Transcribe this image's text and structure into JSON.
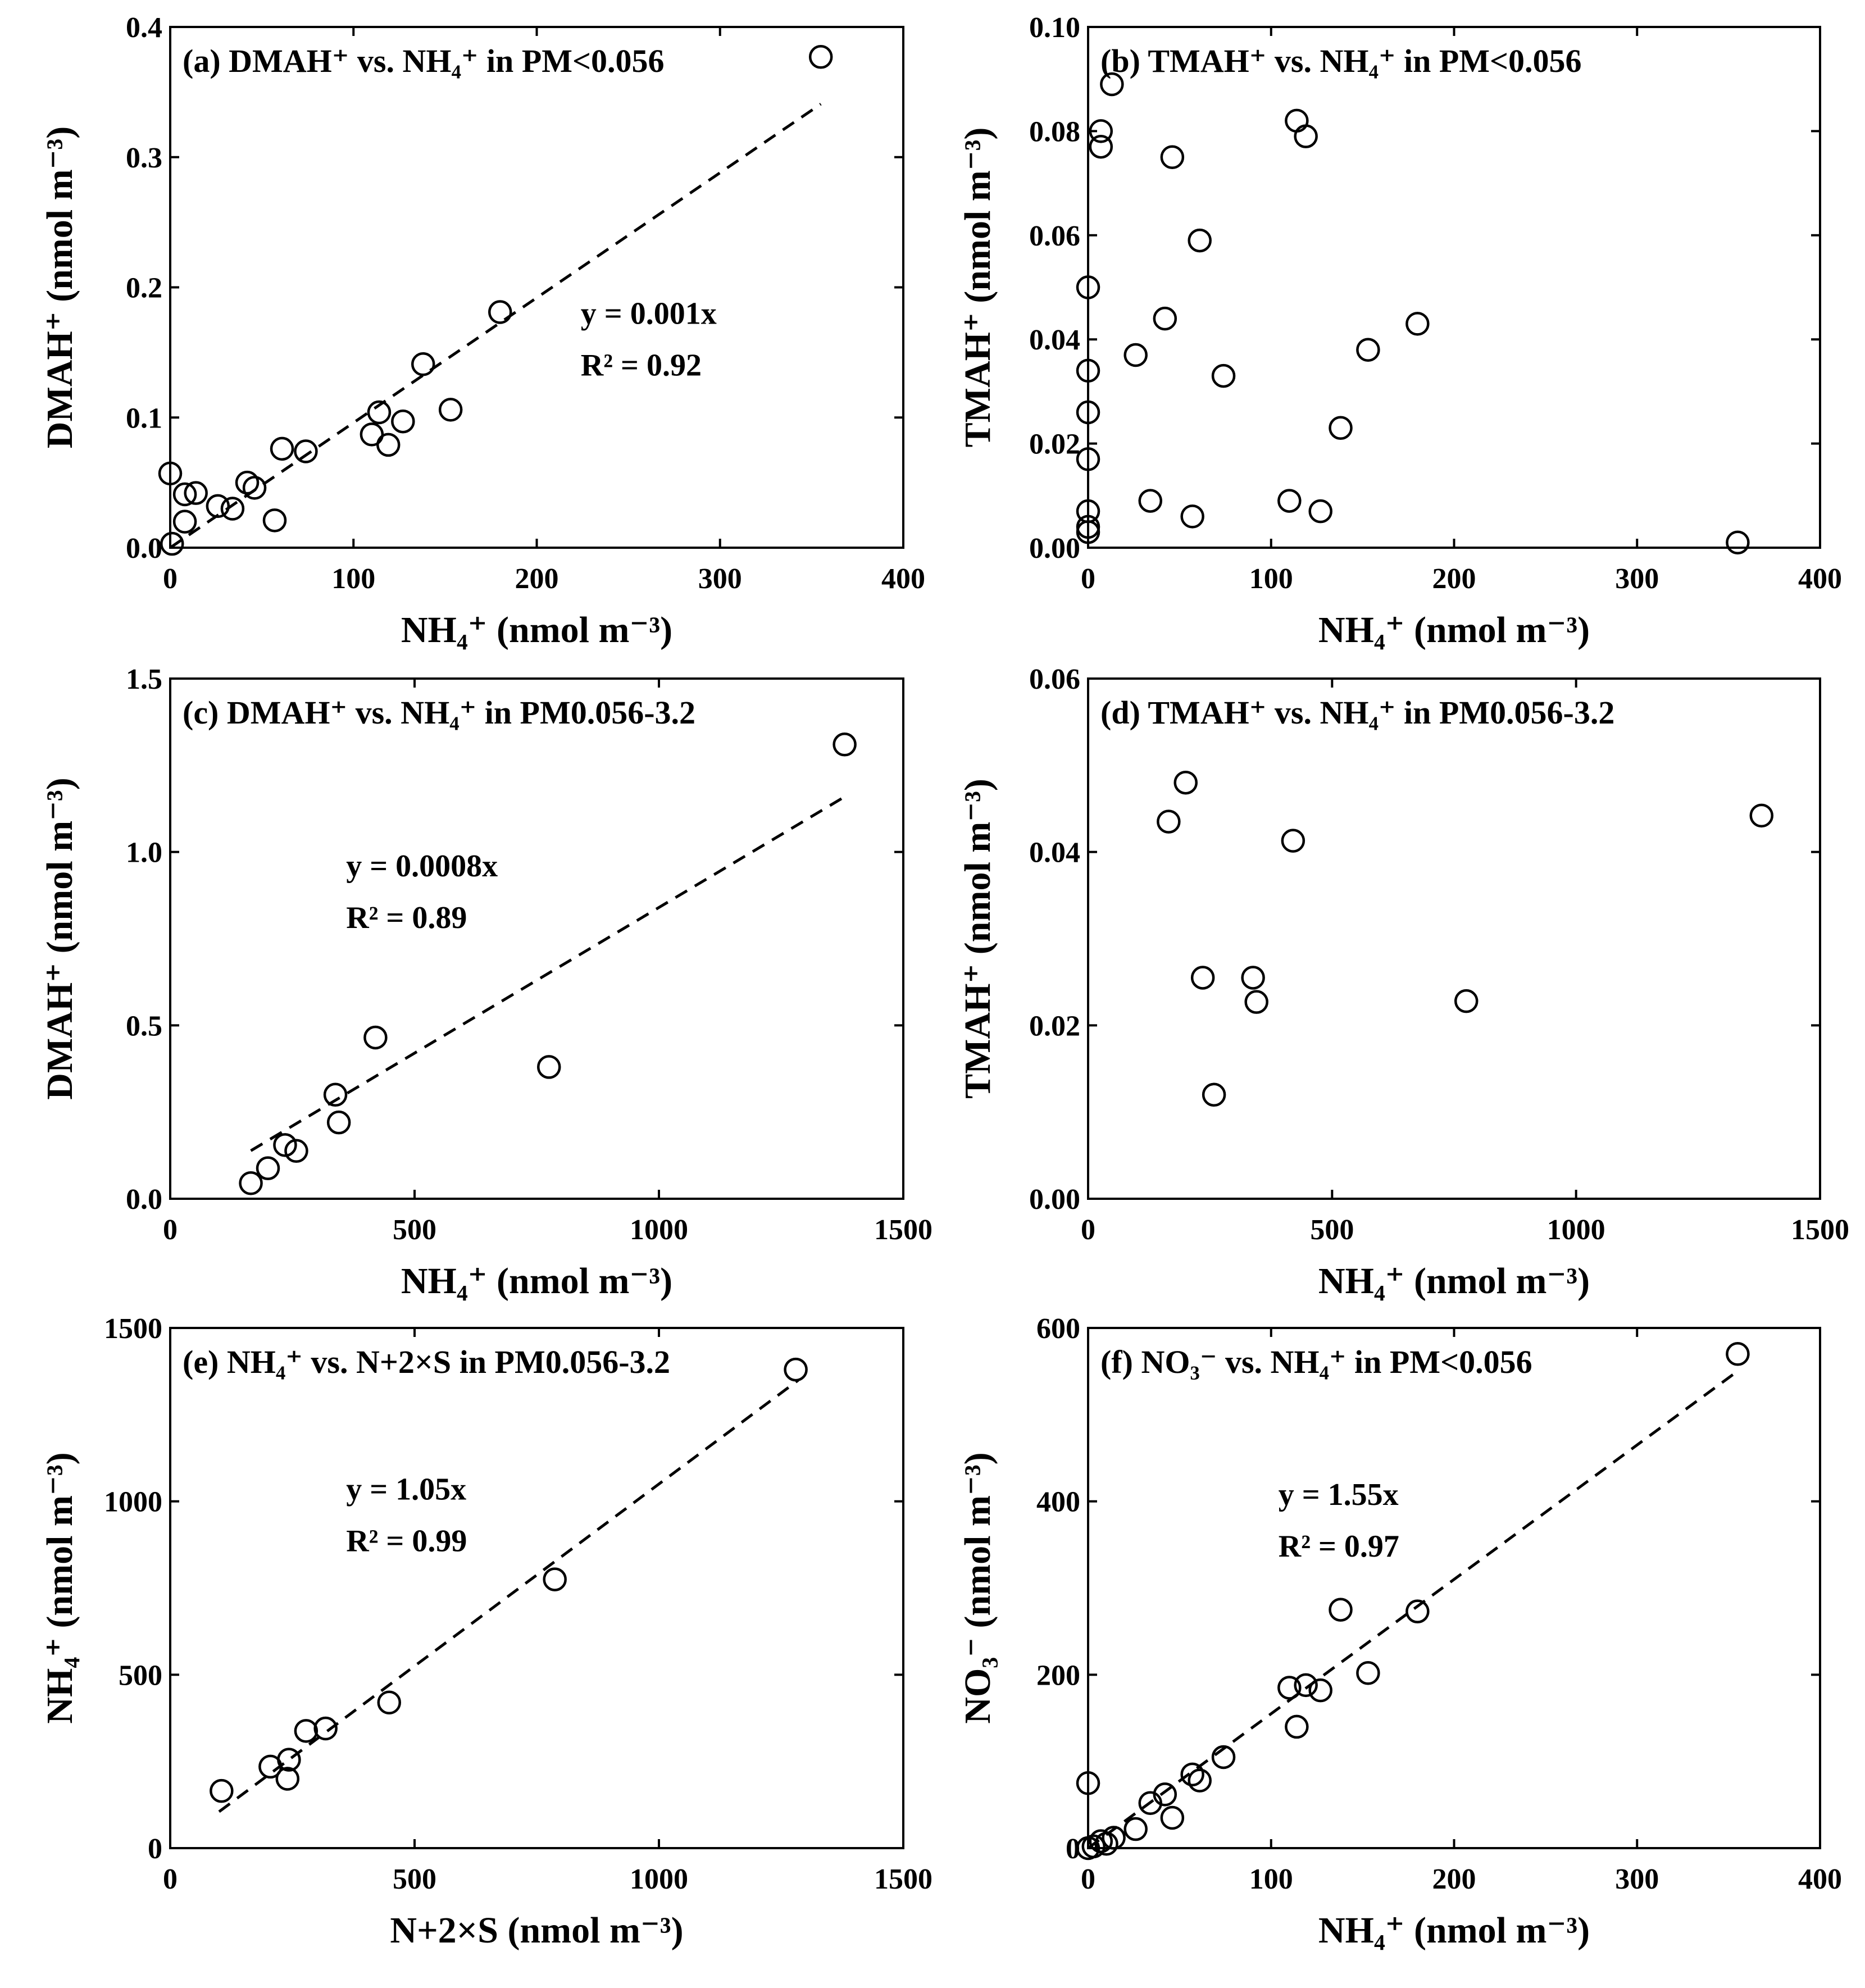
{
  "chart_data": [
    {
      "id": "a",
      "type": "scatter",
      "title": "(a) DMAH⁺ vs. NH₄⁺ in PM<0.056",
      "xlabel": "NH₄⁺ (nmol m⁻³)",
      "ylabel": "DMAH⁺ (nmol m⁻³)",
      "xlim": [
        0,
        400
      ],
      "ylim": [
        0,
        0.4
      ],
      "xticks": [
        0,
        100,
        200,
        300,
        400
      ],
      "xtick_labels": [
        "0",
        "100",
        "200",
        "300",
        "400"
      ],
      "yticks": [
        0,
        0.1,
        0.2,
        0.3,
        0.4
      ],
      "ytick_labels": [
        "0.0",
        "0.1",
        "0.2",
        "0.3",
        "0.4"
      ],
      "equation": "y = 0.001x",
      "r2": "R² = 0.92",
      "fit": {
        "slope": 0.00096,
        "x_range": [
          0,
          355
        ]
      },
      "points": [
        [
          0,
          0.057
        ],
        [
          1,
          0.003
        ],
        [
          8,
          0.041
        ],
        [
          8,
          0.02
        ],
        [
          14,
          0.042
        ],
        [
          26,
          0.032
        ],
        [
          34,
          0.03
        ],
        [
          42,
          0.05
        ],
        [
          46,
          0.046
        ],
        [
          57,
          0.021
        ],
        [
          61,
          0.076
        ],
        [
          74,
          0.074
        ],
        [
          110,
          0.087
        ],
        [
          114,
          0.104
        ],
        [
          119,
          0.079
        ],
        [
          127,
          0.097
        ],
        [
          138,
          0.141
        ],
        [
          153,
          0.106
        ],
        [
          180,
          0.181
        ],
        [
          355,
          0.377
        ]
      ]
    },
    {
      "id": "b",
      "type": "scatter",
      "title": "(b) TMAH⁺ vs. NH₄⁺ in PM<0.056",
      "xlabel": "NH₄⁺ (nmol m⁻³)",
      "ylabel": "TMAH⁺ (nmol m⁻³)",
      "xlim": [
        0,
        400
      ],
      "ylim": [
        0,
        0.1
      ],
      "xticks": [
        0,
        100,
        200,
        300,
        400
      ],
      "xtick_labels": [
        "0",
        "100",
        "200",
        "300",
        "400"
      ],
      "yticks": [
        0,
        0.02,
        0.04,
        0.06,
        0.08,
        0.1
      ],
      "ytick_labels": [
        "0.00",
        "0.02",
        "0.04",
        "0.06",
        "0.08",
        "0.10"
      ],
      "equation": "",
      "r2": "",
      "fit": null,
      "points": [
        [
          0,
          0.05
        ],
        [
          0,
          0.034
        ],
        [
          0,
          0.026
        ],
        [
          0,
          0.017
        ],
        [
          0,
          0.007
        ],
        [
          0,
          0.004
        ],
        [
          0,
          0.003
        ],
        [
          7,
          0.08
        ],
        [
          7,
          0.077
        ],
        [
          13,
          0.089
        ],
        [
          26,
          0.037
        ],
        [
          34,
          0.009
        ],
        [
          42,
          0.044
        ],
        [
          46,
          0.075
        ],
        [
          57,
          0.006
        ],
        [
          61,
          0.059
        ],
        [
          74,
          0.033
        ],
        [
          110,
          0.009
        ],
        [
          114,
          0.082
        ],
        [
          119,
          0.079
        ],
        [
          127,
          0.007
        ],
        [
          138,
          0.023
        ],
        [
          153,
          0.038
        ],
        [
          180,
          0.043
        ],
        [
          355,
          0.001
        ]
      ]
    },
    {
      "id": "c",
      "type": "scatter",
      "title": "(c) DMAH⁺ vs. NH₄⁺ in PM0.056-3.2",
      "xlabel": "NH₄⁺ (nmol m⁻³)",
      "ylabel": "DMAH⁺ (nmol m⁻³)",
      "xlim": [
        0,
        1500
      ],
      "ylim": [
        0,
        1.5
      ],
      "xticks": [
        0,
        500,
        1000,
        1500
      ],
      "xtick_labels": [
        "0",
        "500",
        "1000",
        "1500"
      ],
      "yticks": [
        0,
        0.5,
        1.0,
        1.5
      ],
      "ytick_labels": [
        "0.0",
        "0.5",
        "1.0",
        "1.5"
      ],
      "equation": "y = 0.0008x",
      "r2": "R² = 0.89",
      "fit": {
        "slope": 0.00084,
        "x_range": [
          165,
          1380
        ]
      },
      "points": [
        [
          165,
          0.045
        ],
        [
          200,
          0.088
        ],
        [
          235,
          0.155
        ],
        [
          258,
          0.138
        ],
        [
          338,
          0.3
        ],
        [
          345,
          0.22
        ],
        [
          420,
          0.465
        ],
        [
          775,
          0.38
        ],
        [
          1380,
          1.31
        ]
      ]
    },
    {
      "id": "d",
      "type": "scatter",
      "title": "(d) TMAH⁺ vs. NH₄⁺ in PM0.056-3.2",
      "xlabel": "NH₄⁺ (nmol m⁻³)",
      "ylabel": "TMAH⁺ (nmol m⁻³)",
      "xlim": [
        0,
        1500
      ],
      "ylim": [
        0,
        0.06
      ],
      "xticks": [
        0,
        500,
        1000,
        1500
      ],
      "xtick_labels": [
        "0",
        "500",
        "1000",
        "1500"
      ],
      "yticks": [
        0,
        0.02,
        0.04,
        0.06
      ],
      "ytick_labels": [
        "0.00",
        "0.02",
        "0.04",
        "0.06"
      ],
      "equation": "",
      "r2": "",
      "fit": null,
      "points": [
        [
          165,
          0.0435
        ],
        [
          200,
          0.048
        ],
        [
          235,
          0.0255
        ],
        [
          258,
          0.012
        ],
        [
          338,
          0.0255
        ],
        [
          345,
          0.0227
        ],
        [
          420,
          0.0413
        ],
        [
          775,
          0.0228
        ],
        [
          1380,
          0.0442
        ]
      ]
    },
    {
      "id": "e",
      "type": "scatter",
      "title": "(e) NH₄⁺ vs. N+2×S in PM0.056-3.2",
      "xlabel": "N+2×S (nmol m⁻³)",
      "ylabel": "NH₄⁺ (nmol m⁻³)",
      "xlim": [
        0,
        1500
      ],
      "ylim": [
        0,
        1500
      ],
      "xticks": [
        0,
        500,
        1000,
        1500
      ],
      "xtick_labels": [
        "0",
        "500",
        "1000",
        "1500"
      ],
      "yticks": [
        0,
        500,
        1000,
        1500
      ],
      "ytick_labels": [
        "0",
        "500",
        "1000",
        "1500"
      ],
      "equation": "y = 1.05x",
      "r2": "R² = 0.99",
      "fit": {
        "slope": 1.05,
        "x_range": [
          100,
          1285
        ]
      },
      "points": [
        [
          105,
          165
        ],
        [
          205,
          235
        ],
        [
          240,
          200
        ],
        [
          243,
          255
        ],
        [
          278,
          338
        ],
        [
          318,
          345
        ],
        [
          448,
          420
        ],
        [
          787,
          775
        ],
        [
          1280,
          1380
        ]
      ]
    },
    {
      "id": "f",
      "type": "scatter",
      "title": "(f) NO₃⁻ vs. NH₄⁺ in PM<0.056",
      "xlabel": "NH₄⁺ (nmol m⁻³)",
      "ylabel": "NO₃⁻ (nmol m⁻³)",
      "xlim": [
        0,
        400
      ],
      "ylim": [
        0,
        600
      ],
      "xticks": [
        0,
        100,
        200,
        300,
        400
      ],
      "xtick_labels": [
        "0",
        "100",
        "200",
        "300",
        "400"
      ],
      "yticks": [
        0,
        200,
        400,
        600
      ],
      "ytick_labels": [
        "0",
        "200",
        "400",
        "600"
      ],
      "equation": "y = 1.55x",
      "r2": "R² = 0.97",
      "fit": {
        "slope": 1.55,
        "x_range": [
          0,
          355
        ]
      },
      "points": [
        [
          0,
          75
        ],
        [
          0,
          0
        ],
        [
          3,
          2
        ],
        [
          7,
          8
        ],
        [
          10,
          5
        ],
        [
          14,
          12
        ],
        [
          26,
          22
        ],
        [
          34,
          52
        ],
        [
          42,
          62
        ],
        [
          46,
          35
        ],
        [
          57,
          85
        ],
        [
          61,
          78
        ],
        [
          74,
          105
        ],
        [
          110,
          185
        ],
        [
          114,
          140
        ],
        [
          119,
          188
        ],
        [
          127,
          182
        ],
        [
          138,
          275
        ],
        [
          153,
          202
        ],
        [
          180,
          273
        ],
        [
          355,
          570
        ]
      ]
    }
  ]
}
